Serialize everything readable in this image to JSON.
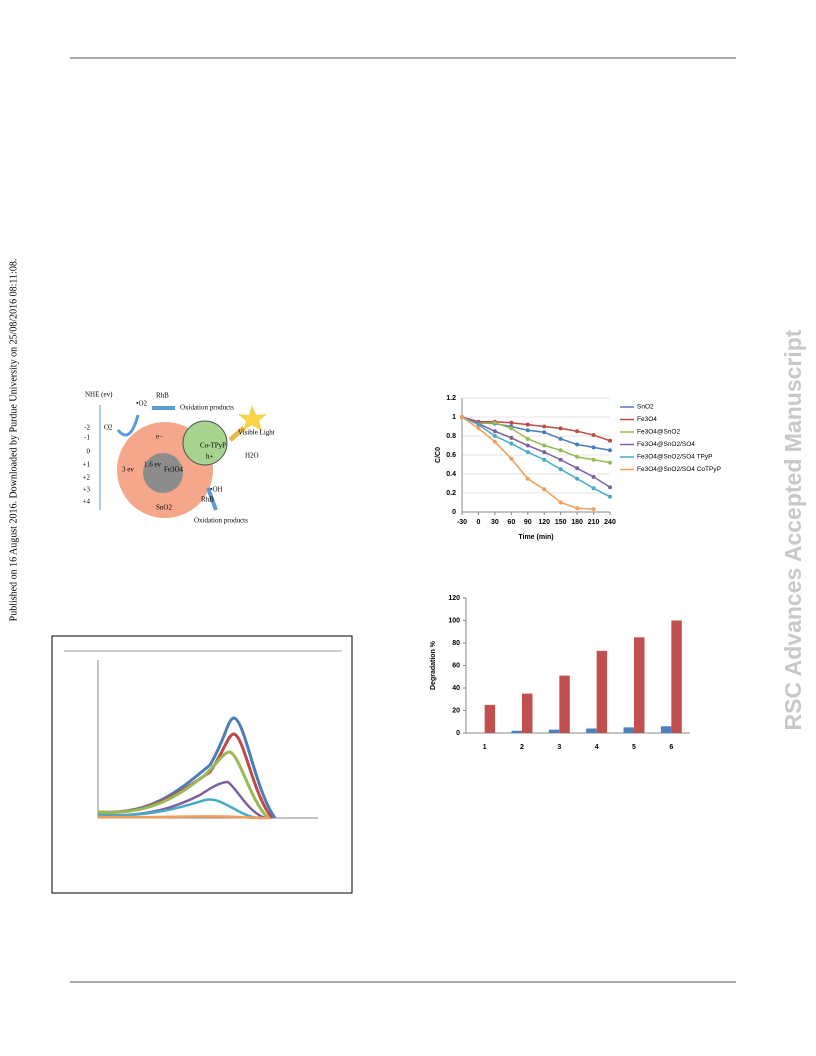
{
  "side_note": "Published on 16 August 2016. Downloaded by Purdue University on 25/08/2016 08:11:08.",
  "watermark": "RSC Advances Accepted Manuscript",
  "diagram": {
    "axis_label": "NHE (ev)",
    "ticks": [
      "-2",
      "-1",
      "0",
      "+1",
      "+2",
      "+3",
      "+4"
    ],
    "labels": [
      "O2",
      "•O2",
      "RhB",
      "Oxidation products",
      "Visible Light",
      "Co-TPyP",
      "e−",
      "h+",
      "H2O",
      "3 ev",
      "1.6 ev",
      "Fe3O4",
      "•OH",
      "RhB",
      "Oxidation products",
      "SnO2"
    ]
  },
  "chart_data": [
    {
      "type": "line",
      "x_label": "Time (min)",
      "y_label": "C/C0",
      "x": [
        -30,
        0,
        30,
        60,
        90,
        120,
        150,
        180,
        210,
        240
      ],
      "xlim": [
        -30,
        240
      ],
      "xticks": [
        -30,
        0,
        30,
        60,
        90,
        120,
        150,
        180,
        210,
        240
      ],
      "ylim": [
        0,
        1.2
      ],
      "yticks": [
        0,
        0.2,
        0.4,
        0.6,
        0.8,
        1,
        1.2
      ],
      "series": [
        {
          "name": "SnO2",
          "color": "#4a7ebb",
          "values": [
            1,
            0.94,
            0.93,
            0.9,
            0.86,
            0.84,
            0.77,
            0.71,
            0.68,
            0.65
          ]
        },
        {
          "name": "Fe3O4",
          "color": "#be4b48",
          "values": [
            1,
            0.95,
            0.95,
            0.94,
            0.92,
            0.9,
            0.88,
            0.85,
            0.81,
            0.75
          ]
        },
        {
          "name": "Fe3O4@SnO2",
          "color": "#98b954",
          "values": [
            1,
            0.93,
            0.94,
            0.88,
            0.77,
            0.7,
            0.65,
            0.58,
            0.55,
            0.52
          ]
        },
        {
          "name": "Fe3O4@SnO2/SO4",
          "color": "#7d60a0",
          "values": [
            1,
            0.93,
            0.85,
            0.78,
            0.7,
            0.63,
            0.55,
            0.46,
            0.37,
            0.26
          ]
        },
        {
          "name": "Fe3O4@SnO2/SO4 TPyP",
          "color": "#46aac5",
          "values": [
            1,
            0.92,
            0.8,
            0.72,
            0.63,
            0.55,
            0.45,
            0.35,
            0.25,
            0.16
          ]
        },
        {
          "name": "Fe3O4@SnO2/SO4 CoTPyP",
          "color": "#f59d56",
          "values": [
            1,
            0.88,
            0.74,
            0.56,
            0.35,
            0.24,
            0.1,
            0.04,
            0.03,
            null
          ]
        }
      ]
    },
    {
      "type": "bar",
      "y_label": "Degradation %",
      "categories": [
        "1",
        "2",
        "3",
        "4",
        "5",
        "6"
      ],
      "ylim": [
        0,
        120
      ],
      "yticks": [
        0,
        20,
        40,
        60,
        80,
        100,
        120
      ],
      "series": [
        {
          "color": "#4f81bd",
          "values": [
            0,
            2,
            3,
            4,
            5,
            6
          ]
        },
        {
          "color": "#c0504d",
          "values": [
            25,
            35,
            51,
            73,
            85,
            100
          ]
        }
      ]
    }
  ]
}
